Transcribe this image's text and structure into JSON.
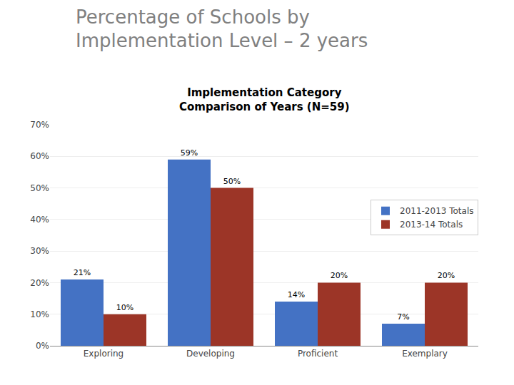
{
  "chart_data": {
    "type": "bar",
    "title": "Percentage of Schools by\nImplementation Level – 2 years",
    "subtitle": "Implementation Category\nComparison of Years (N=59)",
    "categories": [
      "Exploring",
      "Developing",
      "Proficient",
      "Exemplary"
    ],
    "series": [
      {
        "name": "2011-2013 Totals",
        "color": "#4472C4",
        "values": [
          21,
          59,
          14,
          7
        ],
        "value_labels": [
          "21%",
          "59%",
          "14%",
          "7%"
        ]
      },
      {
        "name": "2013-14 Totals",
        "color": "#9C3527",
        "values": [
          10,
          50,
          20,
          20
        ],
        "value_labels": [
          "10%",
          "50%",
          "20%",
          "20%"
        ]
      }
    ],
    "ylim": [
      0,
      70
    ],
    "yticks": [
      {
        "value": 0,
        "label": "0%"
      },
      {
        "value": 10,
        "label": "10%"
      },
      {
        "value": 20,
        "label": "20%"
      },
      {
        "value": 30,
        "label": "30%"
      },
      {
        "value": 40,
        "label": "40%"
      },
      {
        "value": 50,
        "label": "50%"
      },
      {
        "value": 60,
        "label": "60%"
      },
      {
        "value": 70,
        "label": "70%"
      }
    ],
    "grid": true,
    "legend": "right",
    "data_labels": true
  }
}
